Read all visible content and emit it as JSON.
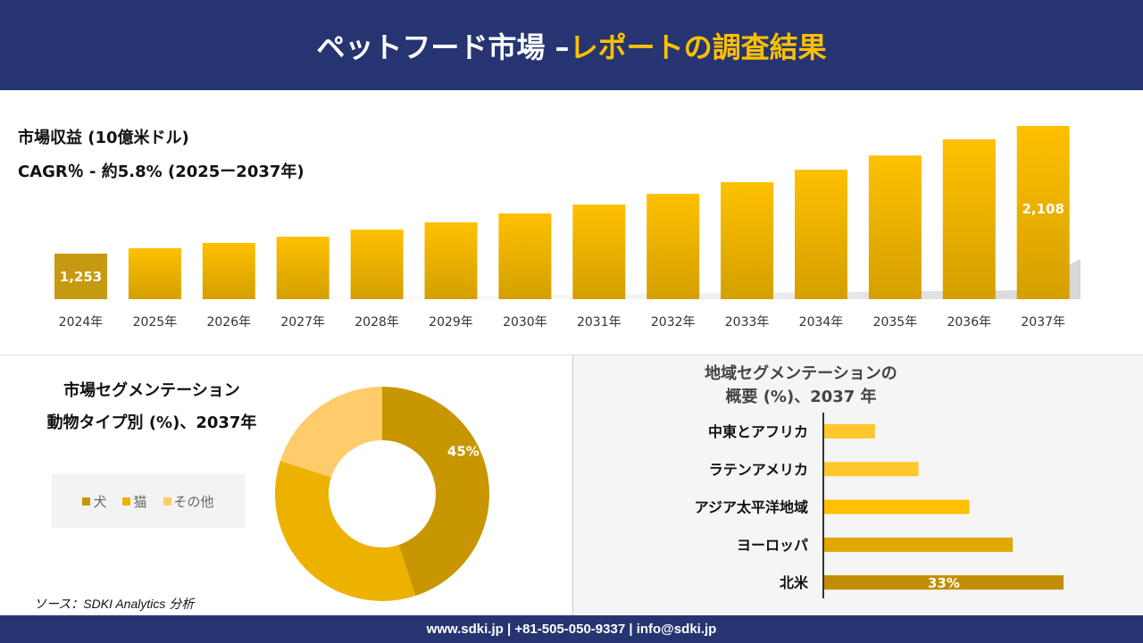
{
  "header": {
    "title_main": "ペットフード市場 –",
    "title_accent": "レポートの調査結果"
  },
  "revenue": {
    "title": "市場収益 (10億米ドル)",
    "cagr": "CAGR％ - 約5.8% (2025ー2037年)"
  },
  "animal_segment": {
    "title_line1": "市場セグメンテーション",
    "title_line2": "動物タイプ別 (%)、2037年"
  },
  "region_segment": {
    "title_line1": "地域セグメンテーションの",
    "title_line2": "概要 (%)、2037 年"
  },
  "source": "ソース：SDKI Analytics 分析",
  "footer": "www.sdki.jp | +81-505-050-9337 | info@sdki.jp",
  "colors": {
    "header": "#263571",
    "accent": "#FFC000",
    "dog": "#C89600",
    "cat": "#EDB100",
    "other": "#FFCB6B"
  },
  "chart_data": [
    {
      "type": "bar",
      "title": "市場収益 (10億米ドル)",
      "categories": [
        "2024年",
        "2025年",
        "2026年",
        "2027年",
        "2028年",
        "2029年",
        "2030年",
        "2031年",
        "2032年",
        "2033年",
        "2034年",
        "2035年",
        "2036年",
        "2037年"
      ],
      "values": [
        1253,
        1289,
        1325,
        1366,
        1414,
        1462,
        1522,
        1582,
        1653,
        1731,
        1815,
        1910,
        2018,
        2108
      ],
      "data_labels": {
        "0": "1,253",
        "13": "2,108"
      },
      "ylim": [
        948,
        2108
      ],
      "grid": false
    },
    {
      "type": "pie",
      "subtype": "donut",
      "title": "市場セグメンテーション 動物タイプ別 (%)、2037年",
      "categories": [
        "犬",
        "猫",
        "その他"
      ],
      "values": [
        45,
        35,
        20
      ],
      "data_labels": {
        "0": "45%"
      },
      "legend": "left"
    },
    {
      "type": "bar",
      "orientation": "horizontal",
      "title": "地域セグメンテーションの 概要 (%)、2037 年",
      "categories": [
        "中東とアフリカ",
        "ラテンアメリカ",
        "アジア太平洋地域",
        "ヨーロッパ",
        "北米"
      ],
      "values": [
        7,
        13,
        20,
        26,
        33
      ],
      "data_labels": {
        "4": "33%"
      },
      "colors": [
        "#FFC72C",
        "#FFC72C",
        "#FFC000",
        "#E0A800",
        "#C08E00"
      ],
      "xlim": [
        0,
        33
      ]
    }
  ]
}
